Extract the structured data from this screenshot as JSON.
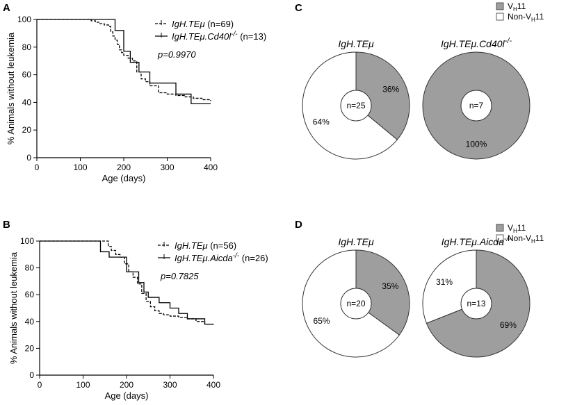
{
  "chart_data": [
    {
      "id": "A",
      "type": "line",
      "panel_label": "A",
      "xlabel": "Age (days)",
      "ylabel": "% Animals without leukemia",
      "xlim": [
        0,
        400
      ],
      "ylim": [
        0,
        100
      ],
      "xticks": [
        "0",
        "100",
        "200",
        "300",
        "400"
      ],
      "yticks": [
        "0",
        "20",
        "40",
        "60",
        "80",
        "100"
      ],
      "legend_loc": "top-right",
      "pvalue": "p=0.9970",
      "series": [
        {
          "name": "IgH.TEμ",
          "name_main": "IgH.TEμ",
          "name_sup": "",
          "n": " (n=69)",
          "style": "dashed",
          "x": [
            0,
            115,
            125,
            135,
            145,
            155,
            165,
            170,
            175,
            180,
            185,
            190,
            195,
            200,
            210,
            220,
            230,
            240,
            250,
            260,
            280,
            300,
            320,
            340,
            360,
            380,
            400
          ],
          "y": [
            100,
            100,
            99,
            98,
            97,
            96,
            95,
            91,
            88,
            85,
            82,
            78,
            76,
            74,
            72,
            70,
            62,
            57,
            55,
            52,
            47,
            46,
            45,
            44,
            43,
            42,
            41
          ]
        },
        {
          "name": "IgH.TEμ.Cd40l-/-",
          "name_main": "IgH.TEμ.Cd40l",
          "name_sup": "-/-",
          "n": " (n=13)",
          "style": "solid",
          "x": [
            0,
            170,
            180,
            200,
            215,
            235,
            260,
            290,
            320,
            355,
            400
          ],
          "y": [
            100,
            100,
            92,
            77,
            69,
            62,
            54,
            54,
            46,
            39,
            39
          ]
        }
      ]
    },
    {
      "id": "B",
      "type": "line",
      "panel_label": "B",
      "xlabel": "Age (days)",
      "ylabel": "% Animals without leukemia",
      "xlim": [
        0,
        400
      ],
      "ylim": [
        0,
        100
      ],
      "xticks": [
        "0",
        "100",
        "200",
        "300",
        "400"
      ],
      "yticks": [
        "0",
        "20",
        "40",
        "60",
        "80",
        "100"
      ],
      "legend_loc": "top-right",
      "pvalue": "p=0.7825",
      "series": [
        {
          "name": "IgH.TEμ",
          "name_main": "IgH.TEμ",
          "name_sup": "",
          "n": " (n=56)",
          "style": "dashed",
          "x": [
            0,
            150,
            158,
            165,
            175,
            185,
            195,
            205,
            215,
            225,
            235,
            245,
            255,
            265,
            275,
            285,
            300,
            320,
            340,
            360,
            380,
            400
          ],
          "y": [
            100,
            100,
            96,
            93,
            90,
            88,
            83,
            77,
            73,
            68,
            61,
            55,
            51,
            48,
            46,
            45,
            44,
            43,
            42,
            40,
            38,
            37
          ]
        },
        {
          "name": "IgH.TEμ.Aicda-/-",
          "name_main": "IgH.TEμ.Aicda",
          "name_sup": "-/-",
          "n": " (n=26)",
          "style": "solid",
          "x": [
            0,
            140,
            160,
            200,
            228,
            240,
            250,
            275,
            300,
            320,
            340,
            360,
            380,
            400
          ],
          "y": [
            100,
            92,
            88,
            77,
            69,
            62,
            58,
            54,
            50,
            46,
            42,
            42,
            38,
            38
          ]
        }
      ]
    },
    {
      "id": "C",
      "type": "pie",
      "panel_label": "C",
      "legend": [
        {
          "main": "V",
          "sub": "H",
          "rest": "11",
          "color": "#9e9e9e"
        },
        {
          "main": "Non-V",
          "sub": "H",
          "rest": "11",
          "color": "#ffffff"
        }
      ],
      "pies": [
        {
          "title_main": "IgH.TEμ",
          "title_sup": "",
          "center_label": "n=25",
          "slices": [
            {
              "label": "VH11",
              "value": 36,
              "text": "36%",
              "color": "#9e9e9e"
            },
            {
              "label": "Non-VH11",
              "value": 64,
              "text": "64%",
              "color": "#ffffff"
            }
          ]
        },
        {
          "title_main": "IgH.TEμ.Cd40l",
          "title_sup": "-/-",
          "center_label": "n=7",
          "slices": [
            {
              "label": "VH11",
              "value": 100,
              "text": "100%",
              "color": "#9e9e9e"
            }
          ]
        }
      ]
    },
    {
      "id": "D",
      "type": "pie",
      "panel_label": "D",
      "legend": [
        {
          "main": "V",
          "sub": "H",
          "rest": "11",
          "color": "#9e9e9e"
        },
        {
          "main": "Non-V",
          "sub": "H",
          "rest": "11",
          "color": "#ffffff"
        }
      ],
      "pies": [
        {
          "title_main": "IgH.TEμ",
          "title_sup": "",
          "center_label": "n=20",
          "slices": [
            {
              "label": "VH11",
              "value": 35,
              "text": "35%",
              "color": "#9e9e9e"
            },
            {
              "label": "Non-VH11",
              "value": 65,
              "text": "65%",
              "color": "#ffffff"
            }
          ]
        },
        {
          "title_main": "IgH.TEμ.Aicda",
          "title_sup": "-/-",
          "center_label": "n=13",
          "slices": [
            {
              "label": "VH11",
              "value": 69,
              "text": "69%",
              "color": "#9e9e9e"
            },
            {
              "label": "Non-VH11",
              "value": 31,
              "text": "31%",
              "color": "#ffffff"
            }
          ]
        }
      ]
    }
  ]
}
